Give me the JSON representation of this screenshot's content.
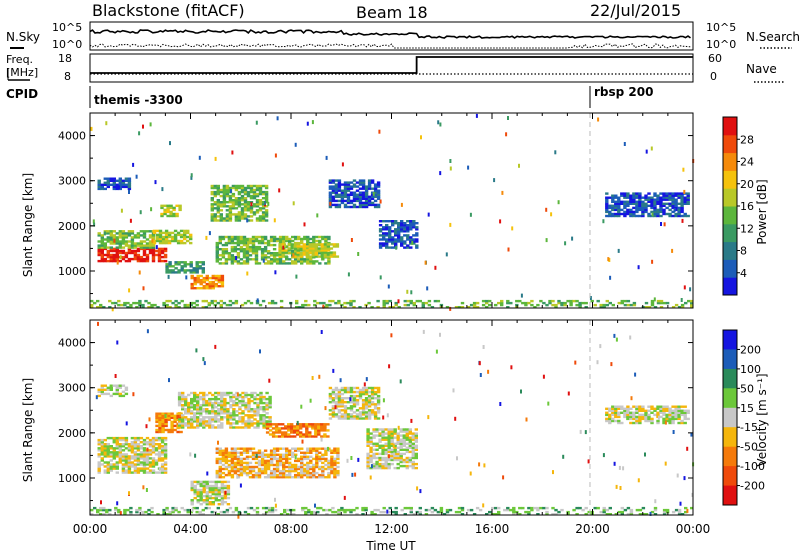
{
  "header": {
    "station": "Blackstone (fitACF)",
    "beam": "Beam 18",
    "date": "22/Jul/2015"
  },
  "top_panel": {
    "left_label": "N.Sky",
    "right_label": "N.Search",
    "left_ticks": [
      "10^5",
      "10^0"
    ],
    "right_ticks": [
      "10^5",
      "10^0"
    ]
  },
  "freq_panel": {
    "left_label_line1": "Freq.",
    "left_label_line2": "[MHz]",
    "left_ticks": [
      "18",
      "8"
    ],
    "right_label": "Nave",
    "right_ticks": [
      "60",
      "0"
    ]
  },
  "cpid_panel": {
    "label": "CPID",
    "events": [
      {
        "name": "themis -3300",
        "start_hour": 0
      },
      {
        "name": "rbsp 200",
        "start_hour": 19.9
      }
    ]
  },
  "chart_data": [
    {
      "type": "heatmap",
      "name": "Power",
      "ylabel": "Slant Range [km]",
      "xlabel": "",
      "x_range_hours": [
        0,
        24
      ],
      "ylim": [
        180,
        4500
      ],
      "yticks": [
        "1000",
        "2000",
        "3000",
        "4000"
      ],
      "colorbar_label": "Power [dB]",
      "colorbar_ticks": [
        "4",
        "8",
        "12",
        "16",
        "20",
        "24",
        "28"
      ],
      "colors": [
        "#1515e0",
        "#1c5cb8",
        "#2a7a88",
        "#3a9a62",
        "#5cb63c",
        "#b8c828",
        "#f5c20c",
        "#f58a0a",
        "#ef4a0a",
        "#e01010"
      ],
      "regions": [
        {
          "t0": 0.3,
          "t1": 1.6,
          "r0": 2800,
          "r1": 3050,
          "level": 1
        },
        {
          "t0": 0.3,
          "t1": 3.0,
          "r0": 1200,
          "r1": 1500,
          "level": 9
        },
        {
          "t0": 0.3,
          "t1": 2.5,
          "r0": 1500,
          "r1": 1900,
          "level": 4
        },
        {
          "t0": 2.5,
          "t1": 4.0,
          "r0": 1600,
          "r1": 1900,
          "level": 5
        },
        {
          "t0": 2.8,
          "t1": 3.6,
          "r0": 2200,
          "r1": 2450,
          "level": 5
        },
        {
          "t0": 4.0,
          "t1": 5.3,
          "r0": 600,
          "r1": 900,
          "level": 7
        },
        {
          "t0": 3.0,
          "t1": 4.5,
          "r0": 950,
          "r1": 1200,
          "level": 3
        },
        {
          "t0": 4.8,
          "t1": 7.0,
          "r0": 2100,
          "r1": 2900,
          "level": 4
        },
        {
          "t0": 5.0,
          "t1": 9.5,
          "r0": 1150,
          "r1": 1750,
          "level": 4
        },
        {
          "t0": 7.5,
          "t1": 9.8,
          "r0": 1300,
          "r1": 1600,
          "level": 5
        },
        {
          "t0": 9.5,
          "t1": 11.5,
          "r0": 2400,
          "r1": 3000,
          "level": 1
        },
        {
          "t0": 11.5,
          "t1": 13.0,
          "r0": 1500,
          "r1": 2100,
          "level": 1
        },
        {
          "t0": 20.5,
          "t1": 23.8,
          "r0": 2200,
          "r1": 2700,
          "level": 1
        },
        {
          "t0": 0.0,
          "t1": 24.0,
          "r0": 180,
          "r1": 350,
          "level": 4
        }
      ]
    },
    {
      "type": "heatmap",
      "name": "Velocity",
      "ylabel": "Slant Range [km]",
      "xlabel": "Time UT",
      "x_range_hours": [
        0,
        24
      ],
      "ylim": [
        180,
        4500
      ],
      "yticks": [
        "1000",
        "2000",
        "3000",
        "4000"
      ],
      "xticks": [
        "00:00",
        "04:00",
        "08:00",
        "12:00",
        "16:00",
        "20:00",
        "00:00"
      ],
      "colorbar_label": "Velocity [m s⁻¹]",
      "colorbar_ticks": [
        "200",
        "100",
        "50",
        "15",
        "-15",
        "-50",
        "-100",
        "-200"
      ],
      "colors": [
        "#1515e0",
        "#1c5cb8",
        "#2a8a5a",
        "#6cc83a",
        "#c8c8c8",
        "#f5b60c",
        "#f57a0a",
        "#ef4a0a",
        "#e01010"
      ],
      "regions": [
        {
          "t0": 0.3,
          "t1": 1.5,
          "r0": 2800,
          "r1": 3050,
          "level": 4
        },
        {
          "t0": 0.3,
          "t1": 3.0,
          "r0": 1100,
          "r1": 1900,
          "level": 4
        },
        {
          "t0": 2.6,
          "t1": 3.6,
          "r0": 2000,
          "r1": 2450,
          "level": 6
        },
        {
          "t0": 4.0,
          "t1": 5.5,
          "r0": 400,
          "r1": 900,
          "level": 4
        },
        {
          "t0": 3.5,
          "t1": 7.2,
          "r0": 2100,
          "r1": 2900,
          "level": 4
        },
        {
          "t0": 5.0,
          "t1": 9.8,
          "r0": 1000,
          "r1": 1650,
          "level": 5
        },
        {
          "t0": 7.0,
          "t1": 9.5,
          "r0": 1900,
          "r1": 2200,
          "level": 6
        },
        {
          "t0": 9.5,
          "t1": 11.5,
          "r0": 2300,
          "r1": 3000,
          "level": 4
        },
        {
          "t0": 11.0,
          "t1": 13.0,
          "r0": 1200,
          "r1": 2100,
          "level": 4
        },
        {
          "t0": 20.5,
          "t1": 23.8,
          "r0": 2200,
          "r1": 2600,
          "level": 4
        },
        {
          "t0": 0.0,
          "t1": 24.0,
          "r0": 180,
          "r1": 320,
          "level": 3
        }
      ]
    }
  ]
}
